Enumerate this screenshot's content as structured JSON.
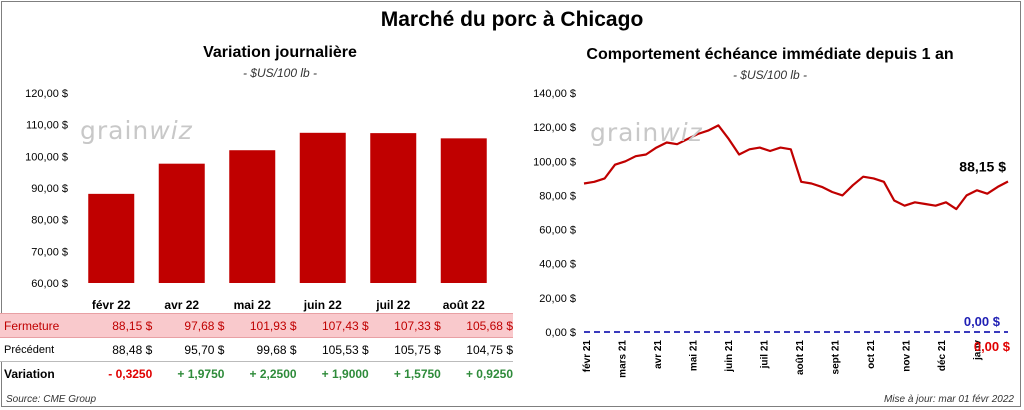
{
  "title": "Marché du porc à Chicago",
  "left_panel": {
    "title": "Variation  journalière",
    "unit": "- $US/100 lb -"
  },
  "right_panel": {
    "title": "Comportement  échéance immédiate depuis 1 an",
    "unit": "- $US/100 lb -"
  },
  "logo_text": "grainwiz",
  "source": "Source: CME Group",
  "updated": "Mise à jour: mar 01 févr 2022",
  "colors": {
    "bar": "#c00000",
    "line": "#c00000",
    "zero_line": "#1f1fb4",
    "positive": "#2e8b3a",
    "negative": "#e00000"
  },
  "table": {
    "rows": [
      {
        "label": "Fermeture",
        "values": [
          "88,15  $",
          "97,68  $",
          "101,93  $",
          "107,43  $",
          "107,33  $",
          "105,68  $"
        ]
      },
      {
        "label": "Précédent",
        "values": [
          "88,48  $",
          "95,70  $",
          "99,68  $",
          "105,53  $",
          "105,75  $",
          "104,75  $"
        ]
      },
      {
        "label": "Variation",
        "values": [
          "- 0,3250",
          "+ 1,9750",
          "+ 2,2500",
          "+ 1,9000",
          "+ 1,5750",
          "+ 0,9250"
        ]
      }
    ]
  },
  "chart_data": [
    {
      "type": "bar",
      "title": "Variation  journalière",
      "subtitle": "- $US/100 lb -",
      "categories": [
        "févr 22",
        "avr 22",
        "mai 22",
        "juin 22",
        "juil 22",
        "août 22"
      ],
      "values": [
        88.15,
        97.68,
        101.93,
        107.43,
        107.33,
        105.68
      ],
      "ylim": [
        60,
        120
      ],
      "yticks": [
        "60,00 $",
        "70,00 $",
        "80,00 $",
        "90,00 $",
        "100,00 $",
        "110,00 $",
        "120,00 $"
      ],
      "ytick_values": [
        60,
        70,
        80,
        90,
        100,
        110,
        120
      ],
      "grid": false
    },
    {
      "type": "line",
      "title": "Comportement  échéance immédiate depuis 1 an",
      "subtitle": "- $US/100 lb -",
      "xticks": [
        "févr 21",
        "mars 21",
        "avr 21",
        "mai 21",
        "juin 21",
        "juil 21",
        "août 21",
        "sept 21",
        "oct 21",
        "nov 21",
        "déc 21",
        "janv"
      ],
      "ylim": [
        0,
        140
      ],
      "yticks": [
        "0,00 $",
        "20,00 $",
        "40,00 $",
        "60,00 $",
        "80,00 $",
        "100,00 $",
        "120,00 $",
        "140,00 $"
      ],
      "ytick_values": [
        0,
        20,
        40,
        60,
        80,
        100,
        120,
        140
      ],
      "series": [
        {
          "x": [
            0,
            0.3,
            0.6,
            0.9,
            1.2,
            1.5,
            1.8,
            2.1,
            2.4,
            2.7,
            3.0,
            3.3,
            3.6,
            3.9,
            4.2,
            4.5,
            4.8,
            5.1,
            5.4,
            5.7,
            6.0,
            6.3,
            6.6,
            6.9,
            7.2,
            7.5,
            7.8,
            8.1,
            8.4,
            8.7,
            9.0,
            9.3,
            9.6,
            9.9,
            10.2,
            10.5,
            10.8,
            11.1,
            11.4,
            11.7,
            12.0,
            12.3
          ],
          "values": [
            87,
            88,
            90,
            98,
            100,
            103,
            104,
            108,
            111,
            110,
            113,
            116,
            118,
            121,
            113,
            104,
            107,
            108,
            106,
            108,
            107,
            88,
            87,
            85,
            82,
            80,
            86,
            91,
            90,
            88,
            77,
            74,
            76,
            75,
            74,
            76,
            72,
            80,
            83,
            81,
            85,
            88.15
          ]
        },
        {
          "x": [
            0,
            12.3
          ],
          "values": [
            0,
            0
          ]
        }
      ],
      "annotations": [
        "88,15 $",
        "0,00 $",
        "0,00 $"
      ],
      "grid": false
    }
  ]
}
